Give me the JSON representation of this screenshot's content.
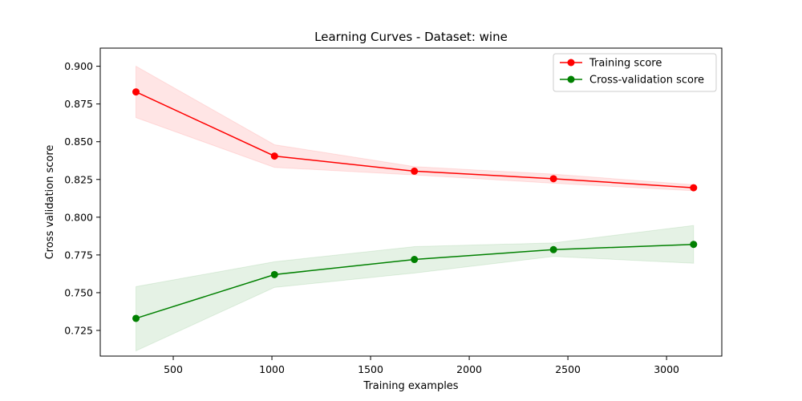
{
  "chart_data": {
    "type": "line",
    "title": "Learning Curves - Dataset: wine",
    "xlabel": "Training examples",
    "ylabel": "Cross validation score",
    "xlim": [
      130,
      3280
    ],
    "ylim": [
      0.708,
      0.912
    ],
    "xticks": [
      500,
      1000,
      1500,
      2000,
      2500,
      3000
    ],
    "yticks": [
      0.725,
      0.75,
      0.775,
      0.8,
      0.825,
      0.85,
      0.875,
      0.9
    ],
    "ytick_labels": [
      "0.725",
      "0.750",
      "0.775",
      "0.800",
      "0.825",
      "0.850",
      "0.875",
      "0.900"
    ],
    "grid": false,
    "legend_position": "upper-right",
    "x": [
      311,
      1013,
      1722,
      2427,
      3137
    ],
    "series": [
      {
        "name": "Training score",
        "color": "#ff0000",
        "band_color": "#ff0000",
        "values": [
          0.883,
          0.8405,
          0.8305,
          0.8255,
          0.8195
        ],
        "lower": [
          0.866,
          0.833,
          0.828,
          0.8225,
          0.8175
        ],
        "upper": [
          0.9,
          0.848,
          0.8335,
          0.8285,
          0.8215
        ]
      },
      {
        "name": "Cross-validation score",
        "color": "#008000",
        "band_color": "#008000",
        "values": [
          0.733,
          0.762,
          0.772,
          0.7785,
          0.782
        ],
        "lower": [
          0.7115,
          0.7535,
          0.763,
          0.774,
          0.7695
        ],
        "upper": [
          0.754,
          0.7705,
          0.7805,
          0.783,
          0.7945
        ]
      }
    ]
  }
}
